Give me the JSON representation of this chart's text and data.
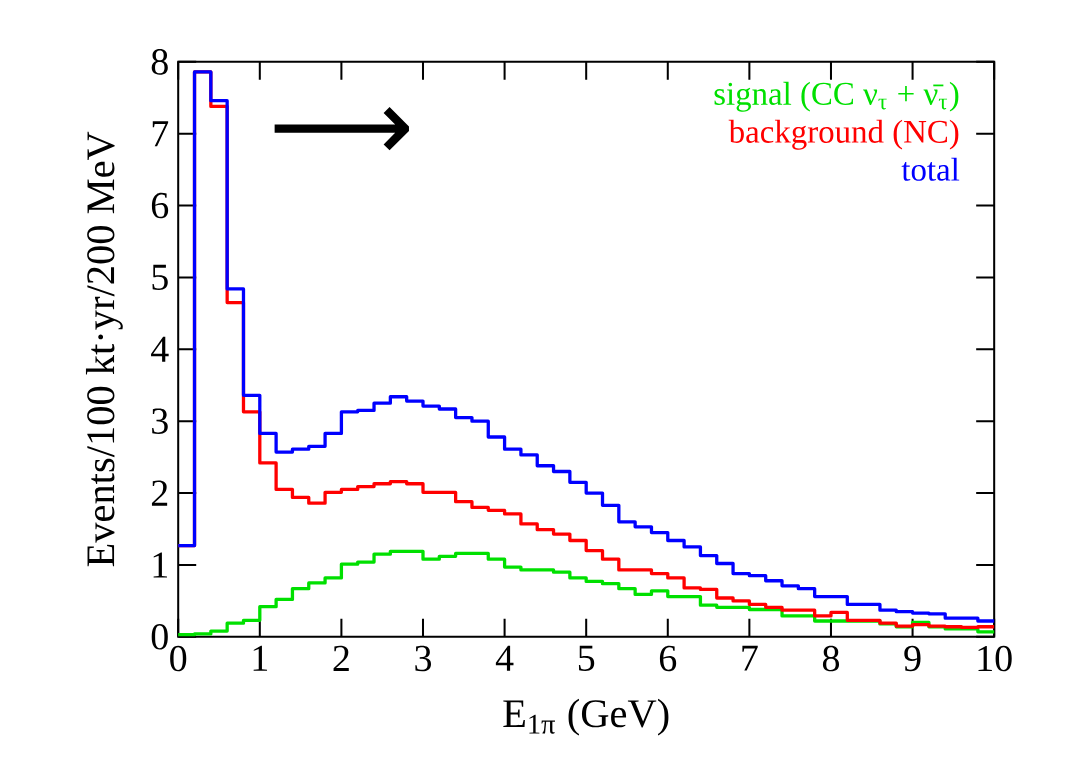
{
  "chart_data": {
    "type": "histogram",
    "xlabel": "E$_{1π}$ (GeV)",
    "ylabel": "Events/100 kt·yr/200 MeV",
    "annotations": [
      "⟶"
    ],
    "bins": [
      0,
      0.2,
      0.4,
      0.6,
      0.8,
      1.0,
      1.2,
      1.4,
      1.6,
      1.8,
      2.0,
      2.2,
      2.4,
      2.6,
      2.8,
      3.0,
      3.2,
      3.4,
      3.6,
      3.8,
      4.0,
      4.2,
      4.4,
      4.6,
      4.8,
      5.0,
      5.2,
      5.4,
      5.6,
      5.8,
      6.0,
      6.2,
      6.4,
      6.6,
      6.8,
      7.0,
      7.2,
      7.4,
      7.6,
      7.8,
      8.0,
      8.2,
      8.4,
      8.6,
      8.8,
      9.0,
      9.2,
      9.4,
      9.6,
      9.8,
      10.0
    ],
    "series": [
      {
        "name": "signal (CC ν$_{τ}$ + ν̄$_{τ}$)",
        "color": "#00e000",
        "values": [
          0.03,
          0.04,
          0.08,
          0.19,
          0.23,
          0.42,
          0.52,
          0.67,
          0.75,
          0.82,
          1.01,
          1.04,
          1.15,
          1.19,
          1.19,
          1.08,
          1.12,
          1.16,
          1.16,
          1.08,
          0.97,
          0.93,
          0.93,
          0.9,
          0.82,
          0.77,
          0.74,
          0.67,
          0.59,
          0.64,
          0.56,
          0.56,
          0.44,
          0.41,
          0.41,
          0.38,
          0.38,
          0.29,
          0.29,
          0.22,
          0.22,
          0.22,
          0.22,
          0.18,
          0.14,
          0.2,
          0.14,
          0.11,
          0.11,
          0.07
        ]
      },
      {
        "name": "background (NC)",
        "color": "#ff0000",
        "values": [
          1.27,
          7.86,
          7.38,
          4.65,
          3.13,
          2.42,
          2.05,
          1.94,
          1.86,
          2.01,
          2.05,
          2.09,
          2.13,
          2.16,
          2.13,
          2.01,
          2.01,
          1.88,
          1.8,
          1.76,
          1.71,
          1.57,
          1.49,
          1.43,
          1.34,
          1.2,
          1.08,
          0.93,
          0.93,
          0.88,
          0.82,
          0.68,
          0.66,
          0.54,
          0.5,
          0.45,
          0.41,
          0.37,
          0.37,
          0.29,
          0.34,
          0.23,
          0.23,
          0.19,
          0.15,
          0.17,
          0.15,
          0.14,
          0.13,
          0.14
        ]
      },
      {
        "name": "total",
        "color": "#0000ff",
        "values": [
          1.27,
          7.86,
          7.46,
          4.84,
          3.36,
          2.83,
          2.57,
          2.61,
          2.65,
          2.83,
          3.13,
          3.15,
          3.25,
          3.34,
          3.28,
          3.21,
          3.17,
          3.05,
          3.0,
          2.78,
          2.61,
          2.53,
          2.38,
          2.3,
          2.15,
          2.0,
          1.83,
          1.6,
          1.53,
          1.45,
          1.34,
          1.25,
          1.13,
          1.02,
          0.88,
          0.85,
          0.78,
          0.71,
          0.67,
          0.56,
          0.56,
          0.45,
          0.45,
          0.37,
          0.35,
          0.33,
          0.32,
          0.26,
          0.26,
          0.22
        ]
      }
    ],
    "xlim": [
      0,
      10
    ],
    "ylim": [
      0,
      8
    ],
    "xticks": [
      0,
      1,
      2,
      3,
      4,
      5,
      6,
      7,
      8,
      9,
      10
    ],
    "yticks": [
      0,
      1,
      2,
      3,
      4,
      5,
      6,
      7,
      8
    ],
    "legend": "top right"
  }
}
